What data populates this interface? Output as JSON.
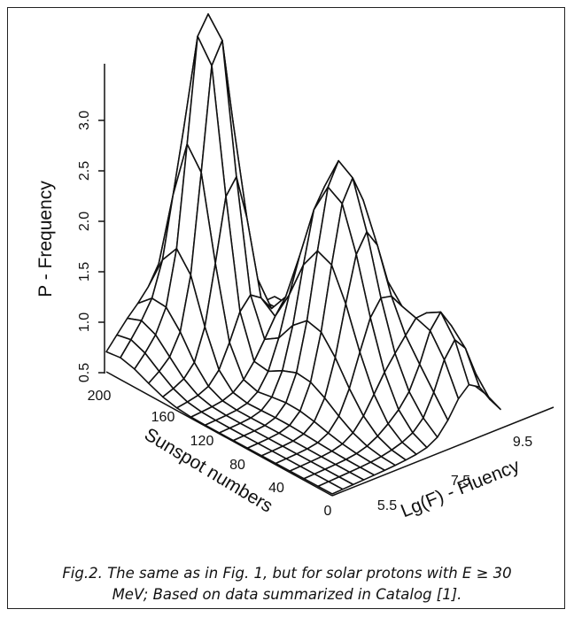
{
  "figure": {
    "z_axis_label": "P - Frequency",
    "z_ticks": [
      "0.5",
      "1.0",
      "1.5",
      "2.0",
      "2.5",
      "3.0"
    ],
    "y_axis_label": "Sunspot numbers",
    "y_ticks": [
      "200",
      "160",
      "120",
      "80",
      "40",
      "0"
    ],
    "x_axis_label": "Lg(F) - Fluency",
    "x_ticks": [
      "5.5",
      "7.5",
      "9.5"
    ]
  },
  "caption": [
    "Fig.2. The same as in Fig. 1, but for solar protons with E ≥ 30",
    "MeV; Based on data summarized in Catalog [1]."
  ]
}
